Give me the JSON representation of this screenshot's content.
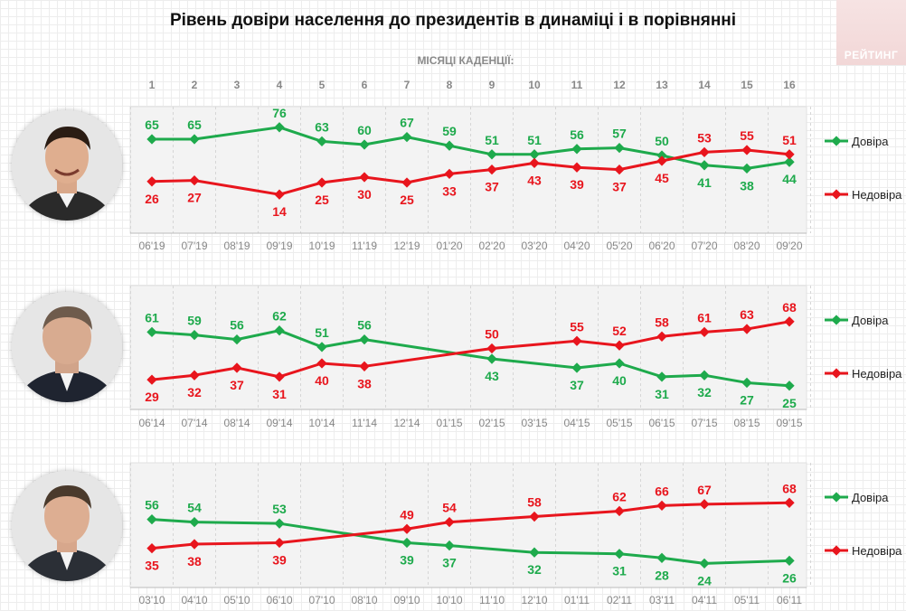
{
  "title": "Рівень довіри населення до президентів в динаміці і в порівнянні",
  "months_label": "МІСЯЦІ КАДЕНЦІЇ:",
  "logo_text": "РЕЙТИНГ",
  "month_numbers": [
    "1",
    "2",
    "3",
    "4",
    "5",
    "6",
    "7",
    "8",
    "9",
    "10",
    "11",
    "12",
    "13",
    "14",
    "15",
    "16"
  ],
  "colors": {
    "trust": "#1eaa4c",
    "distrust": "#e8151d",
    "tick": "#888888"
  },
  "chart_data": [
    {
      "type": "line",
      "categories": [
        "06'19",
        "07'19",
        "08'19",
        "09'19",
        "10'19",
        "11'19",
        "12'19",
        "01'20",
        "02'20",
        "03'20",
        "04'20",
        "05'20",
        "06'20",
        "07'20",
        "08'20",
        "09'20"
      ],
      "ylim": [
        0,
        100
      ],
      "series": [
        {
          "name": "Довіра",
          "values": [
            65,
            65,
            null,
            76,
            63,
            60,
            67,
            59,
            51,
            51,
            56,
            57,
            50,
            41,
            38,
            44
          ]
        },
        {
          "name": "Недовіра",
          "values": [
            26,
            27,
            null,
            14,
            25,
            30,
            25,
            33,
            37,
            43,
            39,
            37,
            45,
            53,
            55,
            51
          ]
        }
      ]
    },
    {
      "type": "line",
      "categories": [
        "06'14",
        "07'14",
        "08'14",
        "09'14",
        "10'14",
        "11'14",
        "12'14",
        "01'15",
        "02'15",
        "03'15",
        "04'15",
        "05'15",
        "06'15",
        "07'15",
        "08'15",
        "09'15"
      ],
      "ylim": [
        0,
        100
      ],
      "series": [
        {
          "name": "Довіра",
          "values": [
            61,
            59,
            56,
            62,
            51,
            56,
            null,
            null,
            43,
            null,
            37,
            40,
            31,
            32,
            27,
            25
          ]
        },
        {
          "name": "Недовіра",
          "values": [
            29,
            32,
            37,
            31,
            40,
            38,
            null,
            null,
            50,
            null,
            55,
            52,
            58,
            61,
            63,
            68
          ]
        }
      ]
    },
    {
      "type": "line",
      "categories": [
        "03'10",
        "04'10",
        "05'10",
        "06'10",
        "07'10",
        "08'10",
        "09'10",
        "10'10",
        "11'10",
        "12'10",
        "01'11",
        "02'11",
        "03'11",
        "04'11",
        "05'11",
        "06'11"
      ],
      "ylim": [
        0,
        100
      ],
      "series": [
        {
          "name": "Довіра",
          "values": [
            56,
            54,
            null,
            53,
            null,
            null,
            39,
            37,
            null,
            32,
            null,
            31,
            28,
            24,
            null,
            26
          ]
        },
        {
          "name": "Недовіра",
          "values": [
            35,
            38,
            null,
            39,
            null,
            null,
            49,
            54,
            null,
            58,
            null,
            62,
            66,
            67,
            null,
            68
          ]
        }
      ]
    }
  ]
}
